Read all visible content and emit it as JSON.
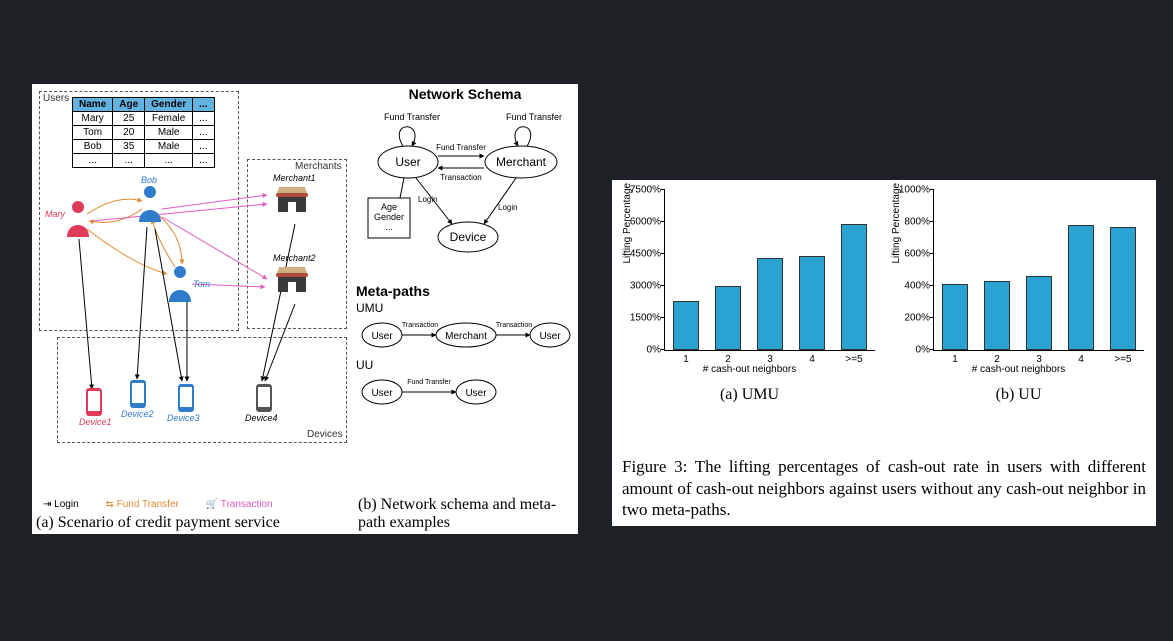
{
  "background_color": "#1e2126",
  "left_figure": {
    "scenario": {
      "boxes": {
        "users_label": "Users",
        "merchants_label": "Merchants",
        "devices_label": "Devices"
      },
      "users_table": {
        "columns": [
          "Name",
          "Age",
          "Gender",
          "..."
        ],
        "rows": [
          [
            "Mary",
            "25",
            "Female",
            "..."
          ],
          [
            "Tom",
            "20",
            "Male",
            "..."
          ],
          [
            "Bob",
            "35",
            "Male",
            "..."
          ],
          [
            "...",
            "...",
            "...",
            "..."
          ]
        ],
        "header_bg": "#63b3e0"
      },
      "people": {
        "mary": {
          "label": "Mary",
          "color": "#e03a5a"
        },
        "bob": {
          "label": "Bob",
          "color": "#2f7bcc"
        },
        "tom": {
          "label": "Tom",
          "color": "#2f7bcc"
        }
      },
      "merchants": {
        "m1": "Merchant1",
        "m2": "Merchant2"
      },
      "devices": {
        "d1": "Device1",
        "d2": "Device2",
        "d3": "Device3",
        "d4": "Device4"
      },
      "legend": {
        "login": "Login",
        "login_color": "#c89a2f",
        "fund": "Fund Transfer",
        "fund_color": "#e08a2f",
        "txn": "Transaction",
        "txn_color": "#e05ac0"
      },
      "caption": "(a) Scenario of credit payment service"
    },
    "schema": {
      "title": "Network Schema",
      "nodes": {
        "user": "User",
        "merchant": "Merchant",
        "device": "Device",
        "attr_box": "Age\nGender\n..."
      },
      "edges": {
        "ft": "Fund Transfer",
        "txn": "Transaction",
        "login": "Login"
      },
      "caption": "(b)  Network  schema  and meta-path examples"
    },
    "metapaths": {
      "title": "Meta-paths",
      "umu": {
        "label": "UMU",
        "seq": [
          "User",
          "Merchant",
          "User"
        ],
        "edge": "Transaction"
      },
      "uu": {
        "label": "UU",
        "seq": [
          "User",
          "User"
        ],
        "edge": "Fund Transfer"
      }
    }
  },
  "right_figure": {
    "chart_style": {
      "bar_color": "#2aa3d3",
      "bar_border": "#333333",
      "axis_color": "#000000",
      "bar_width_ratio": 0.6
    },
    "charts": [
      {
        "id": "umu",
        "sub": "(a) UMU",
        "ylabel": "Lifting Percentage",
        "xlabel": "# cash-out neighbors",
        "ymax": 7500,
        "ytick_step": 1500,
        "ytick_suffix": "%",
        "categories": [
          "1",
          "2",
          "3",
          "4",
          ">=5"
        ],
        "values": [
          2300,
          3000,
          4300,
          4400,
          5900
        ]
      },
      {
        "id": "uu",
        "sub": "(b) UU",
        "ylabel": "Lifting Percentage",
        "xlabel": "# cash-out neighbors",
        "ymax": 1000,
        "ytick_step": 200,
        "ytick_suffix": "%",
        "categories": [
          "1",
          "2",
          "3",
          "4",
          ">=5"
        ],
        "values": [
          410,
          430,
          460,
          780,
          770
        ]
      }
    ],
    "caption": "Figure 3: The lifting percentages of cash-out rate in users with different amount of cash-out neighbors against users without any cash-out neighbor in two meta-paths."
  }
}
